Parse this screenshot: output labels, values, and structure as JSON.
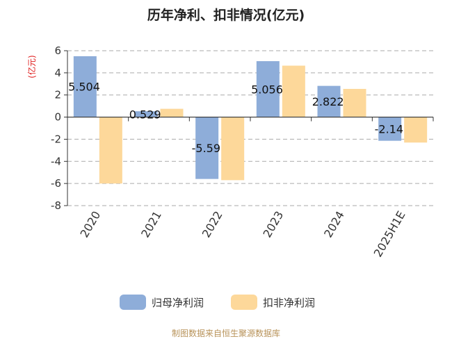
{
  "chart_data": {
    "type": "bar",
    "title": "历年净利、扣非情况(亿元)",
    "ylabel": "(亿元)",
    "categories": [
      "2020",
      "2021",
      "2022",
      "2023",
      "2024",
      "2025H1E"
    ],
    "series": [
      {
        "name": "归母净利润",
        "values": [
          5.504,
          0.529,
          -5.59,
          5.056,
          2.822,
          -2.14
        ],
        "labels": [
          "5.504",
          "0.529",
          "-5.59",
          "5.056",
          "2.822",
          "-2.14"
        ]
      },
      {
        "name": "扣非净利润",
        "values": [
          -6.0,
          0.75,
          -5.7,
          4.65,
          2.55,
          -2.3
        ]
      }
    ],
    "ylim": [
      -8,
      6
    ],
    "yticks": [
      -8,
      -6,
      -4,
      -2,
      0,
      2,
      4,
      6
    ],
    "grid": true,
    "legend": "bottom",
    "colors": [
      "#8eadd9",
      "#fdd89a"
    ]
  },
  "footer": {
    "source": "制图数据来自恒生聚源数据库"
  }
}
